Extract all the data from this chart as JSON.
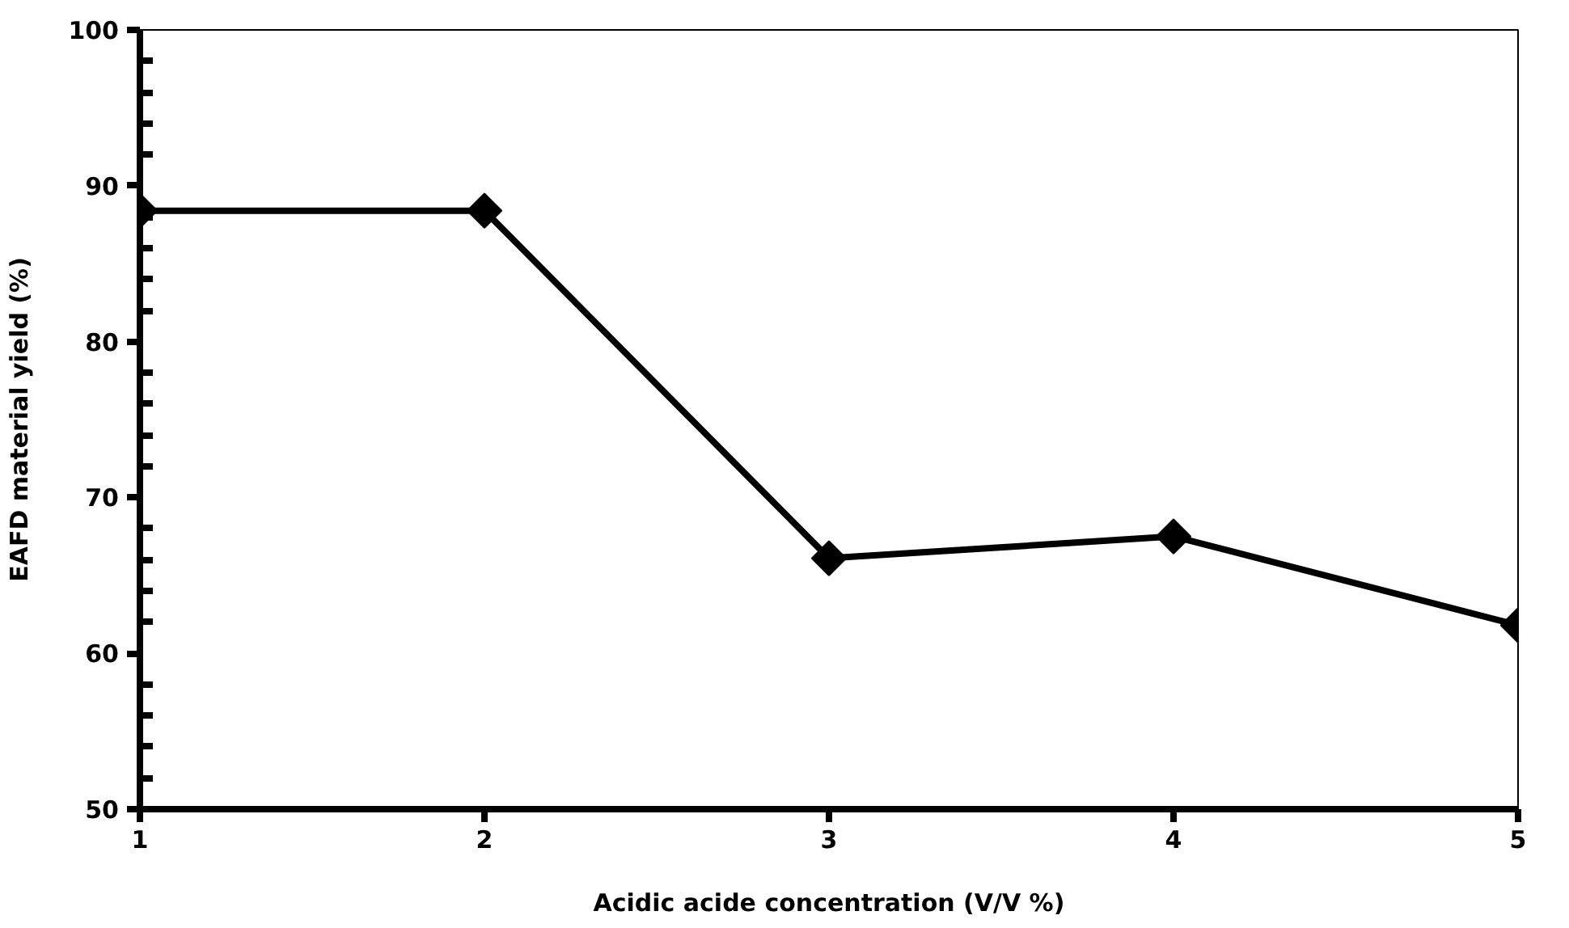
{
  "chart_data": {
    "type": "line",
    "xlabel": "Acidic acide concentration (V/V %)",
    "ylabel": "EAFD material yield (%)",
    "x": [
      1,
      2,
      3,
      4,
      5
    ],
    "series": [
      {
        "color": "#000000",
        "values": [
          88.4,
          88.4,
          66.1,
          67.5,
          61.8
        ]
      }
    ],
    "xlim": [
      1,
      5
    ],
    "xticks": [
      1,
      2,
      3,
      4,
      5
    ],
    "ylim": [
      50,
      100
    ],
    "yticks": [
      50,
      60,
      70,
      80,
      90,
      100
    ],
    "marker": "diamond",
    "line_style": "solid"
  }
}
